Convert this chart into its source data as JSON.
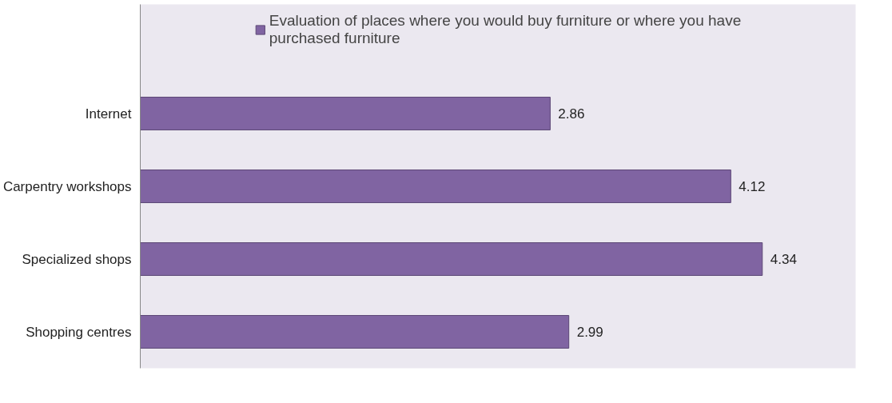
{
  "chart_data": {
    "type": "bar",
    "orientation": "horizontal",
    "categories": [
      "Internet",
      "Carpentry workshops",
      "Specialized shops",
      "Shopping centres"
    ],
    "series": [
      {
        "name": "Evaluation of places where you would buy furniture or where you have purchased furniture",
        "color": "#8064a2",
        "values": [
          2.86,
          4.12,
          4.34,
          2.99
        ]
      }
    ],
    "data_labels": true,
    "legend": "top",
    "grid": false,
    "tick_labels": "y"
  }
}
